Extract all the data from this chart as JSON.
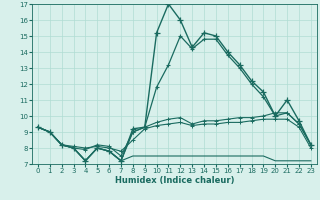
{
  "xlabel": "Humidex (Indice chaleur)",
  "x": [
    0,
    1,
    2,
    3,
    4,
    5,
    6,
    7,
    8,
    9,
    10,
    11,
    12,
    13,
    14,
    15,
    16,
    17,
    18,
    19,
    20,
    21,
    22,
    23
  ],
  "line_peak": [
    9.3,
    9.0,
    8.2,
    8.0,
    7.2,
    8.0,
    7.8,
    7.2,
    9.2,
    9.3,
    15.2,
    17.0,
    16.0,
    14.3,
    15.2,
    15.0,
    14.0,
    13.2,
    12.2,
    11.5,
    10.0,
    11.0,
    9.7,
    8.2
  ],
  "line_mid": [
    9.3,
    9.0,
    8.2,
    8.0,
    7.2,
    8.0,
    7.8,
    7.2,
    9.0,
    9.3,
    11.8,
    13.2,
    15.0,
    14.2,
    14.8,
    14.8,
    13.8,
    13.0,
    12.0,
    11.2,
    10.0,
    10.2,
    9.5,
    8.2
  ],
  "line_flat_high": [
    9.3,
    9.0,
    8.2,
    8.0,
    7.9,
    8.2,
    8.1,
    7.5,
    9.0,
    9.3,
    9.6,
    9.8,
    9.9,
    9.5,
    9.7,
    9.7,
    9.8,
    9.9,
    9.9,
    10.0,
    10.2,
    10.2,
    9.5,
    8.2
  ],
  "line_flat_low": [
    9.3,
    9.0,
    8.2,
    8.1,
    8.0,
    8.1,
    8.0,
    7.8,
    8.5,
    9.2,
    9.4,
    9.5,
    9.6,
    9.4,
    9.5,
    9.5,
    9.6,
    9.6,
    9.7,
    9.8,
    9.8,
    9.8,
    9.3,
    8.0
  ],
  "line_bottom": [
    9.3,
    9.0,
    8.2,
    8.0,
    7.2,
    8.0,
    7.8,
    7.2,
    7.5,
    7.5,
    7.5,
    7.5,
    7.5,
    7.5,
    7.5,
    7.5,
    7.5,
    7.5,
    7.5,
    7.5,
    7.2,
    7.2,
    7.2,
    7.2
  ],
  "line_color": "#1a6b60",
  "bg_color": "#d8f0eb",
  "grid_color": "#b0ddd4",
  "xlim": [
    -0.5,
    23.5
  ],
  "ylim": [
    7,
    17
  ],
  "yticks": [
    7,
    8,
    9,
    10,
    11,
    12,
    13,
    14,
    15,
    16,
    17
  ],
  "xticks": [
    0,
    1,
    2,
    3,
    4,
    5,
    6,
    7,
    8,
    9,
    10,
    11,
    12,
    13,
    14,
    15,
    16,
    17,
    18,
    19,
    20,
    21,
    22,
    23
  ]
}
